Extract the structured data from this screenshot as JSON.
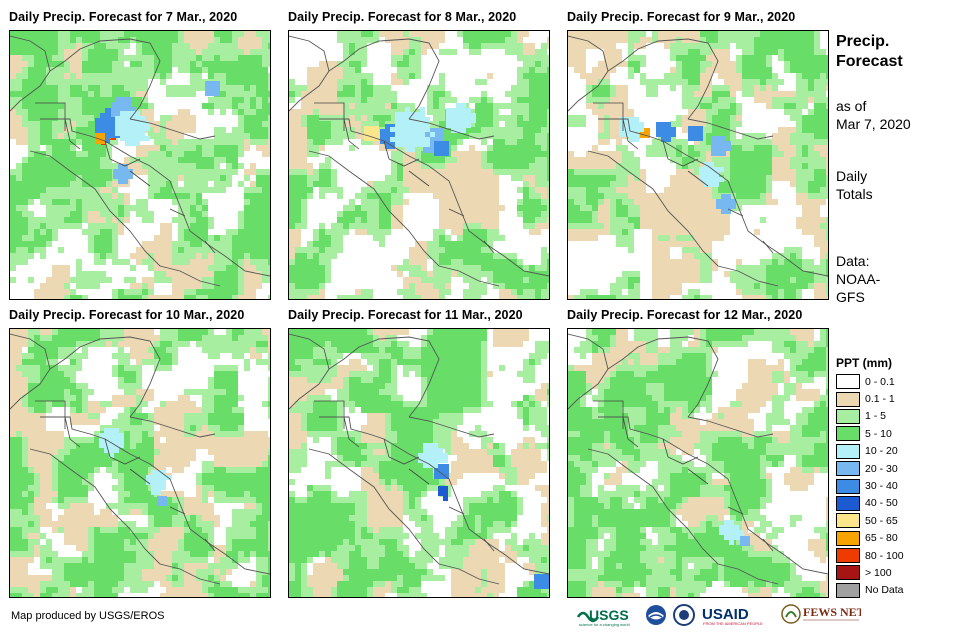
{
  "panels": [
    {
      "title": "Daily Precip. Forecast for 7 Mar., 2020",
      "seed": 11,
      "storm": "honduras_heavy"
    },
    {
      "title": "Daily Precip. Forecast for 8 Mar., 2020",
      "seed": 23,
      "storm": "gulf_band"
    },
    {
      "title": "Daily Precip. Forecast for 9 Mar., 2020",
      "seed": 37,
      "storm": "gulf_band_east"
    },
    {
      "title": "Daily Precip. Forecast for 10 Mar., 2020",
      "seed": 41,
      "storm": "light_band"
    },
    {
      "title": "Daily Precip. Forecast for 11 Mar., 2020",
      "seed": 53,
      "storm": "nicaragua"
    },
    {
      "title": "Daily Precip. Forecast for 12 Mar., 2020",
      "seed": 67,
      "storm": "scattered"
    }
  ],
  "side": {
    "title_line1": "Precip.",
    "title_line2": "Forecast",
    "asof_line1": "as of",
    "asof_line2": "Mar 7, 2020",
    "daily_line1": "Daily",
    "daily_line2": "Totals",
    "data_line1": "Data:",
    "data_line2": "NOAA-",
    "data_line3": "GFS"
  },
  "legend": {
    "title": "PPT (mm)",
    "items": [
      {
        "label": "0 - 0.1",
        "color": "#ffffff"
      },
      {
        "label": "0.1 - 1",
        "color": "#ecd9b4"
      },
      {
        "label": "1 - 5",
        "color": "#a8eea0"
      },
      {
        "label": "5 - 10",
        "color": "#68de68"
      },
      {
        "label": "10 - 20",
        "color": "#b4f0f8"
      },
      {
        "label": "20 - 30",
        "color": "#78b8f0"
      },
      {
        "label": "30 - 40",
        "color": "#3c8ce6"
      },
      {
        "label": "40 - 50",
        "color": "#1c5ad2"
      },
      {
        "label": "50 - 65",
        "color": "#fbe68c"
      },
      {
        "label": "65 - 80",
        "color": "#f8a400"
      },
      {
        "label": "80 - 100",
        "color": "#ee3c00"
      },
      {
        "label": "> 100",
        "color": "#a61414"
      },
      {
        "label": "No Data",
        "color": "#a0a0a0"
      }
    ]
  },
  "credit": "Map produced by USGS/EROS",
  "logos": [
    "USGS",
    "NOAA",
    "USAID",
    "FEWS NET"
  ]
}
